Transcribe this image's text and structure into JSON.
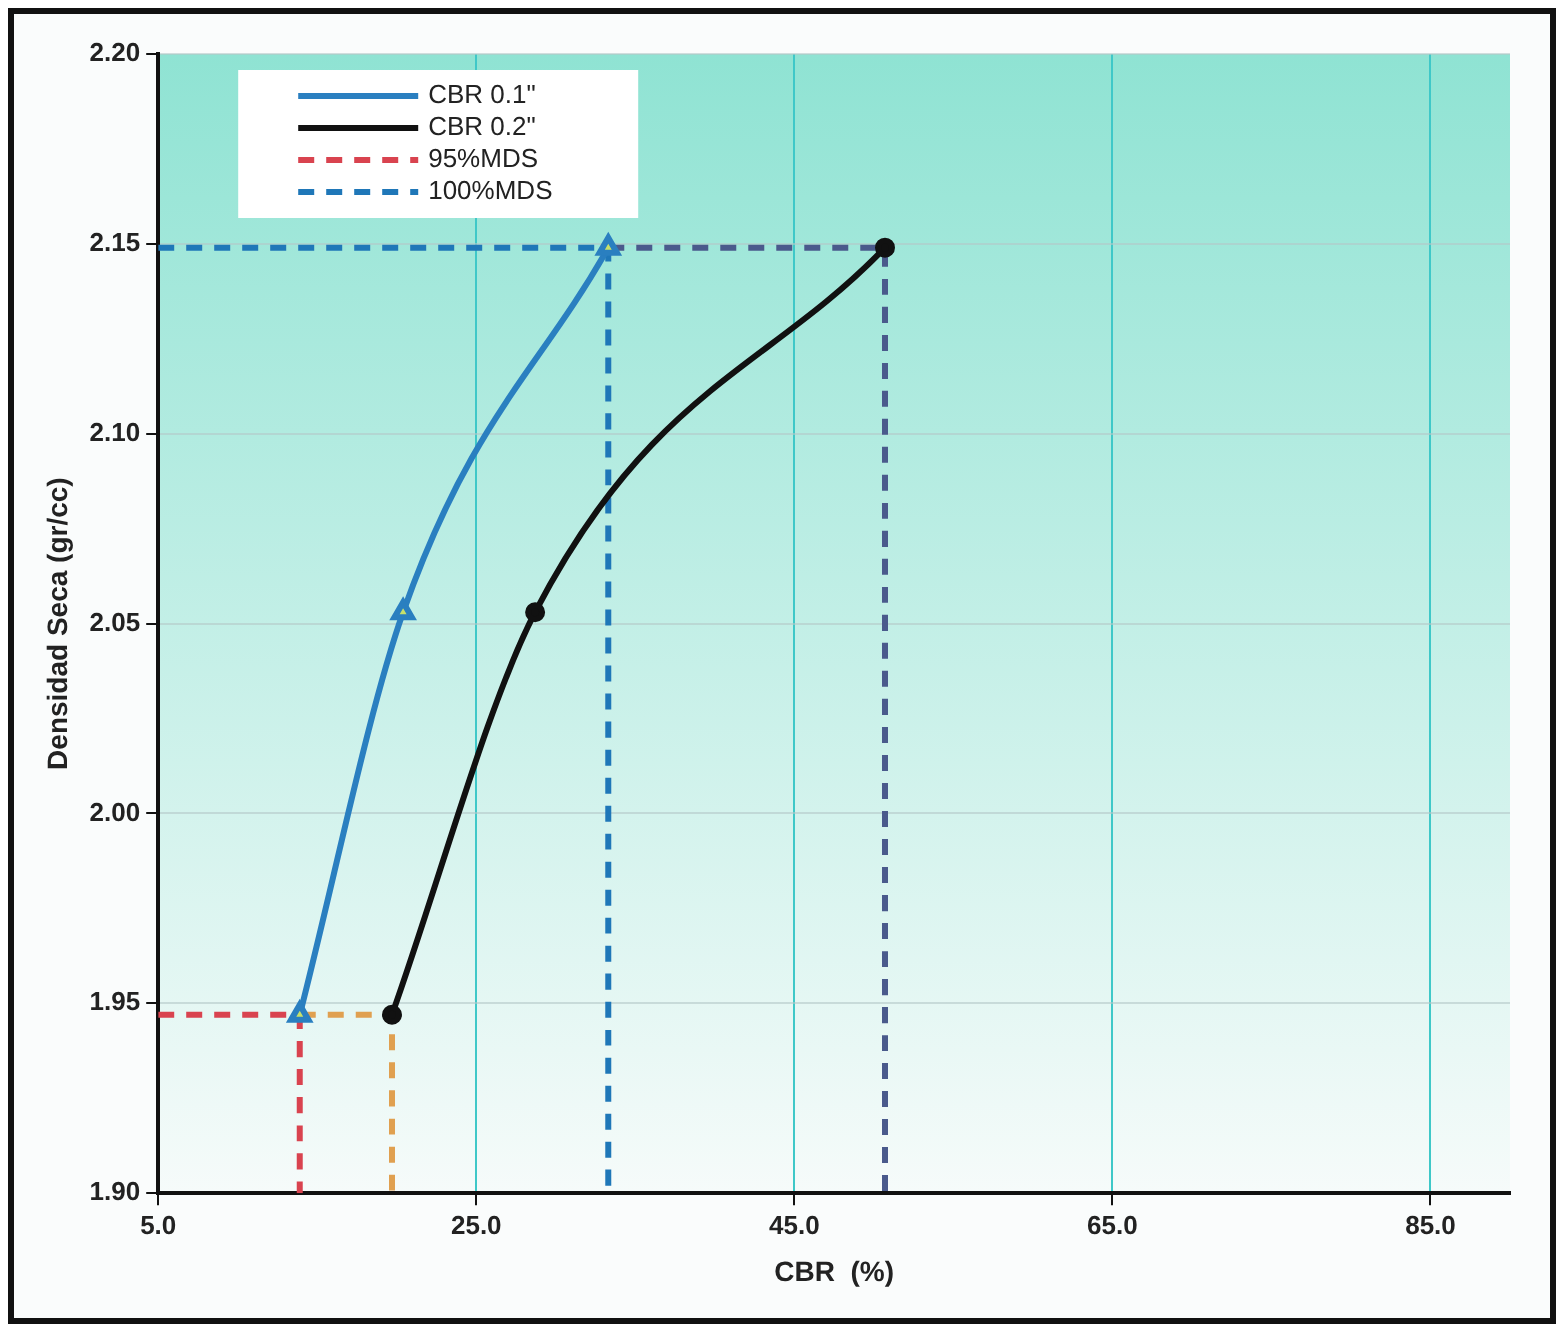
{
  "chart_data": {
    "type": "line",
    "xlabel": "CBR  (%)",
    "ylabel": "Densidad Seca (gr/cc)",
    "xlim": [
      5,
      90
    ],
    "xticks": [
      {
        "value": 5,
        "label": "5.0"
      },
      {
        "value": 25,
        "label": "25.0"
      },
      {
        "value": 45,
        "label": "45.0"
      },
      {
        "value": 65,
        "label": "65.0"
      },
      {
        "value": 85,
        "label": "85.0"
      }
    ],
    "ylim": [
      1.9,
      2.2
    ],
    "yticks": [
      {
        "value": 1.9,
        "label": "1.90"
      },
      {
        "value": 1.95,
        "label": "1.95"
      },
      {
        "value": 2.0,
        "label": "2.00"
      },
      {
        "value": 2.05,
        "label": "2.05"
      },
      {
        "value": 2.1,
        "label": "2.10"
      },
      {
        "value": 2.15,
        "label": "2.15"
      },
      {
        "value": 2.2,
        "label": "2.20"
      }
    ],
    "grid": true,
    "legend": "top left",
    "series": [
      {
        "name": "CBR 0.1\"",
        "color": "#2a7fc0",
        "x": [
          13.9,
          20.4,
          33.3
        ],
        "values": [
          1.947,
          2.053,
          2.149
        ],
        "marker": "triangle",
        "line_style": "solid"
      },
      {
        "name": "CBR 0.2\"",
        "color": "#111111",
        "x": [
          19.7,
          28.7,
          50.7
        ],
        "values": [
          1.947,
          2.053,
          2.149
        ],
        "marker": "circle",
        "line_style": "solid"
      },
      {
        "name": "95%MDS",
        "color": "#d9434f",
        "x": [
          5,
          13.9,
          13.9
        ],
        "values": [
          1.947,
          1.947,
          1.9
        ],
        "marker": "none",
        "line_style": "dashed"
      },
      {
        "name": "100%MDS",
        "color": "#1f77b8",
        "x": [
          5,
          33.3,
          33.3
        ],
        "values": [
          2.149,
          2.149,
          1.9
        ],
        "marker": "none",
        "line_style": "dashed"
      },
      {
        "color": "#e0a050",
        "x": [
          13.9,
          19.7,
          19.7
        ],
        "values": [
          1.947,
          1.947,
          1.9
        ],
        "marker": "none",
        "line_style": "dashed"
      },
      {
        "color": "#4a5a8c",
        "x": [
          33.3,
          50.7,
          50.7
        ],
        "values": [
          2.149,
          2.149,
          1.9
        ],
        "marker": "none",
        "line_style": "dashed"
      }
    ]
  }
}
